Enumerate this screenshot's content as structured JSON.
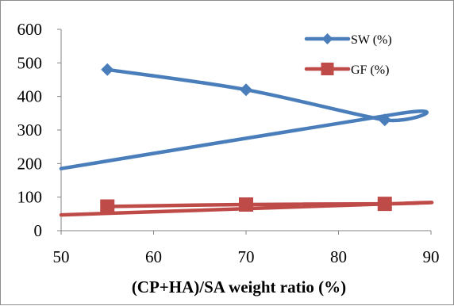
{
  "chart_data": {
    "type": "scatter",
    "title": "",
    "xlabel": "(CP+HA)/SA weight ratio (%)",
    "ylabel": "",
    "xlim": [
      50,
      90
    ],
    "ylim": [
      0,
      600
    ],
    "xticks": [
      50,
      60,
      70,
      80,
      90
    ],
    "yticks": [
      0,
      100,
      200,
      300,
      400,
      500,
      600
    ],
    "grid": false,
    "legend_position": "top-right",
    "smooth_lines": true,
    "series": [
      {
        "name": "SW (%)",
        "color": "#4a7ebb",
        "marker": "diamond",
        "points": [
          [
            55,
            480
          ],
          [
            70,
            420
          ],
          [
            85,
            330
          ]
        ],
        "curve_extension": [
          [
            50,
            185
          ],
          [
            86.8,
            350
          ]
        ]
      },
      {
        "name": "GF (%)",
        "color": "#be4b48",
        "marker": "square",
        "points": [
          [
            55,
            72
          ],
          [
            70,
            78
          ],
          [
            85,
            80
          ]
        ],
        "curve_extension": [
          [
            50,
            47
          ],
          [
            87.5,
            82
          ]
        ]
      }
    ]
  }
}
